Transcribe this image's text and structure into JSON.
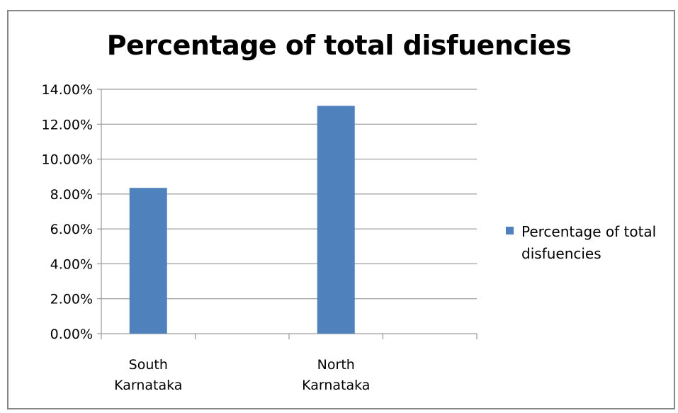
{
  "chart_data": {
    "type": "bar",
    "title": "Percentage of total disfuencies",
    "xlabel": "",
    "ylabel": "",
    "categories": [
      [
        "South",
        "Karnataka"
      ],
      [
        "North",
        "Karnataka"
      ]
    ],
    "series": [
      {
        "name": "Percentage of total disfuencies",
        "values": [
          8.35,
          13.05
        ],
        "color": "#4F81BD"
      }
    ],
    "ylim": [
      0,
      14
    ],
    "y_ticks": [
      "0.00%",
      "2.00%",
      "4.00%",
      "6.00%",
      "8.00%",
      "10.00%",
      "12.00%",
      "14.00%"
    ],
    "grid": true,
    "legend_position": "right",
    "legend_lines": [
      "Percentage of total",
      "disfuencies"
    ]
  }
}
